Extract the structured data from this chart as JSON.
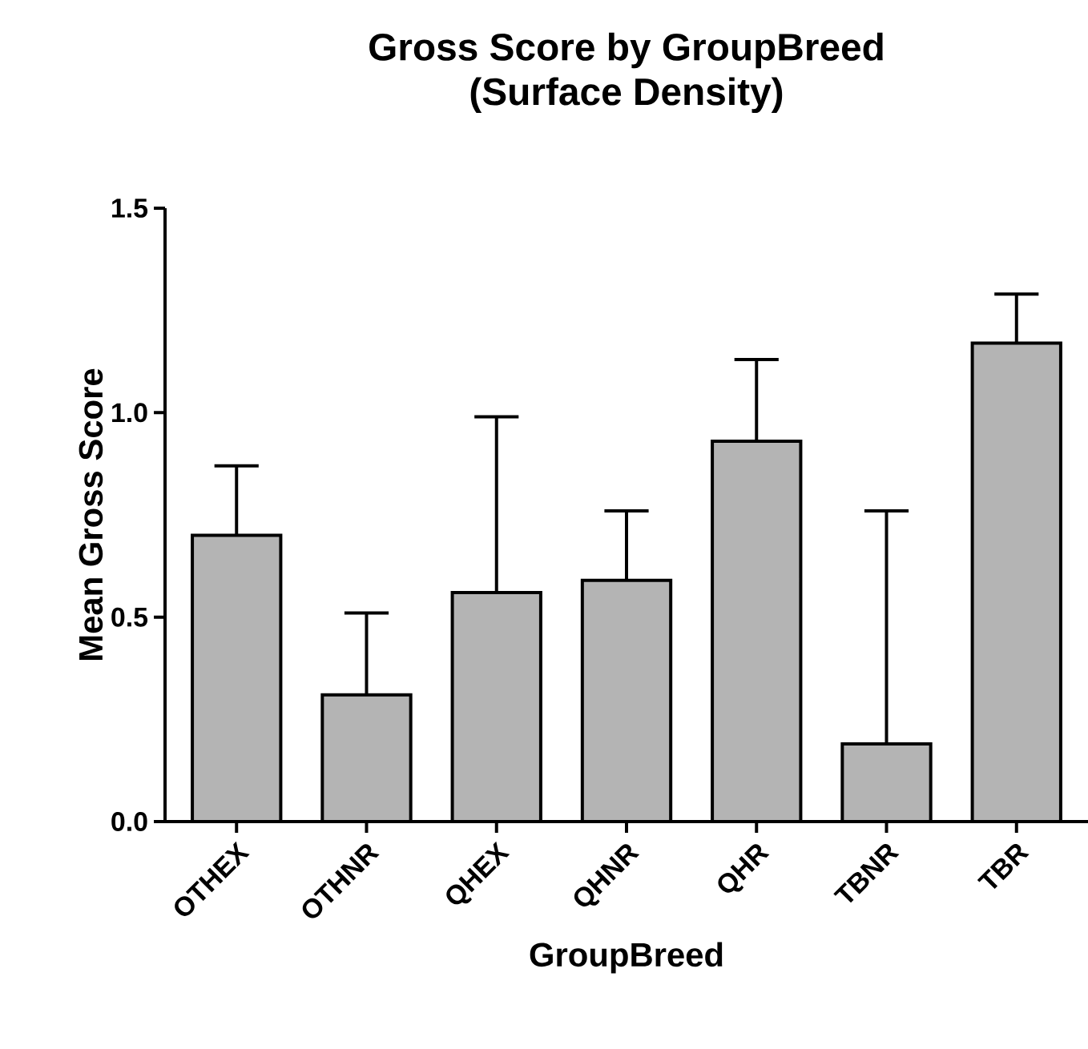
{
  "chart_data": {
    "type": "bar",
    "title": "Gross Score by GroupBreed",
    "subtitle": "(Surface Density)",
    "xlabel": "GroupBreed",
    "ylabel": "Mean Gross Score",
    "categories": [
      "OTHEX",
      "OTHNR",
      "QHEX",
      "QHNR",
      "QHR",
      "TBNR",
      "TBR"
    ],
    "values": [
      0.7,
      0.31,
      0.56,
      0.59,
      0.93,
      0.19,
      1.17
    ],
    "errors": [
      [
        0.7,
        0.87
      ],
      [
        0.31,
        0.51
      ],
      [
        0.56,
        0.99
      ],
      [
        0.59,
        0.76
      ],
      [
        0.93,
        1.13
      ],
      [
        0.19,
        0.76
      ],
      [
        1.17,
        1.29
      ]
    ],
    "color": "#b4b4b4",
    "ylim": [
      0,
      1.5
    ],
    "yticks": [
      {
        "value": 0,
        "label": "0.0"
      },
      {
        "value": 0.5,
        "label": "0.5"
      },
      {
        "value": 1,
        "label": "1.0"
      },
      {
        "value": 1.5,
        "label": "1.5"
      }
    ],
    "grid": false
  }
}
